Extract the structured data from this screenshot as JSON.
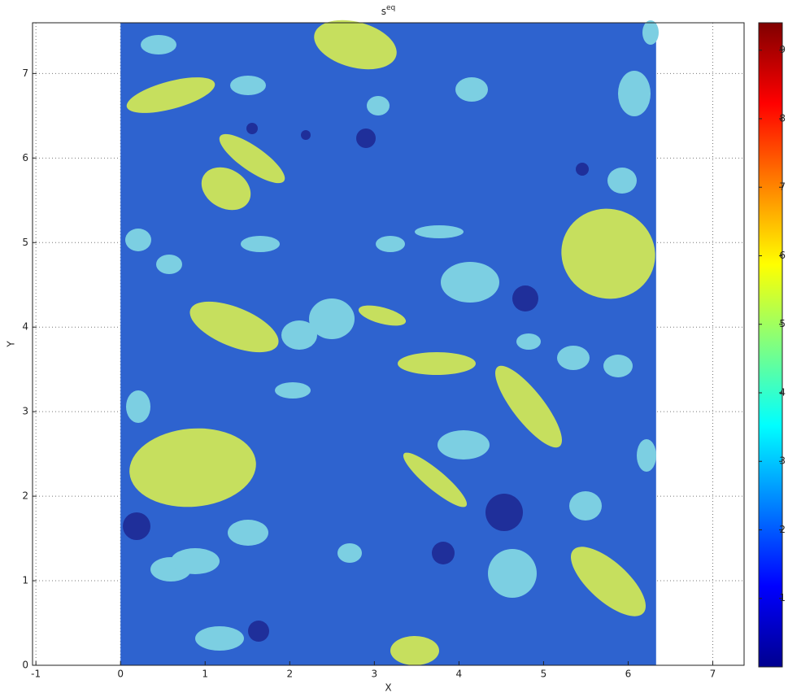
{
  "chart_data": {
    "type": "heatmap",
    "title": "s",
    "title_superscript": "eq",
    "xlabel": "X",
    "ylabel": "Y",
    "xlim": [
      -1.04,
      7.37
    ],
    "ylim": [
      0,
      7.6
    ],
    "xticks": [
      -1,
      0,
      1,
      2,
      3,
      4,
      5,
      6,
      7
    ],
    "yticks": [
      0,
      1,
      2,
      3,
      4,
      5,
      6,
      7
    ],
    "grid": true,
    "field_x": [
      0,
      6.33
    ],
    "field_y": [
      0,
      7.6
    ],
    "field_color": "#2e63cf",
    "colormap": "jet",
    "clim": [
      0,
      9.4
    ],
    "cticks": [
      1,
      2,
      3,
      4,
      5,
      6,
      7,
      8,
      9
    ]
  }
}
